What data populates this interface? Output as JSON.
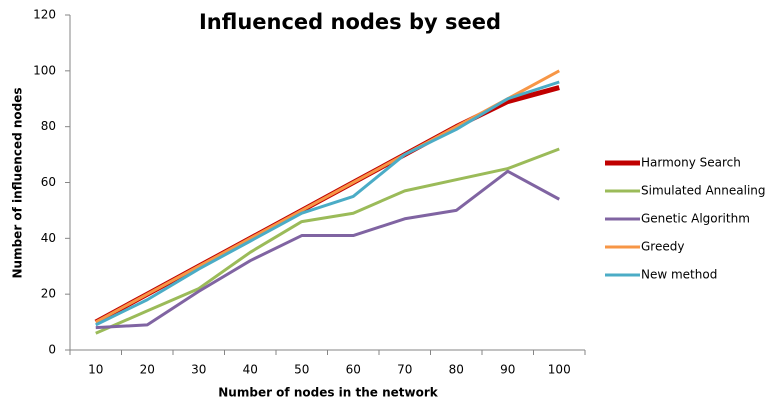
{
  "chart_data": {
    "type": "line",
    "title": "Influenced nodes by seed",
    "x_label": "Number of nodes in the network",
    "y_label": "Number of influenced nodes",
    "categories": [
      "10",
      "20",
      "30",
      "40",
      "50",
      "60",
      "70",
      "80",
      "90",
      "100"
    ],
    "series": [
      {
        "name": "Harmony Search",
        "color": "#c00000",
        "values": [
          10,
          20,
          30,
          40,
          50,
          60,
          70,
          80,
          89,
          94
        ]
      },
      {
        "name": "Simulated Annealing",
        "color": "#9bbb59",
        "values": [
          6,
          14,
          22,
          35,
          46,
          49,
          57,
          61,
          65,
          72
        ]
      },
      {
        "name": "Genetic Algorithm",
        "color": "#8064a2",
        "values": [
          8,
          9,
          21,
          32,
          41,
          41,
          47,
          50,
          64,
          54
        ]
      },
      {
        "name": "Greedy",
        "color": "#f79646",
        "values": [
          10,
          20,
          30,
          40,
          50,
          60,
          70,
          80,
          90,
          100
        ]
      },
      {
        "name": "New method",
        "color": "#4bacc6",
        "values": [
          9,
          18,
          29,
          39,
          49,
          55,
          70,
          79,
          90,
          96
        ]
      }
    ],
    "ylim": [
      0,
      120
    ],
    "yticks": [
      0,
      20,
      40,
      60,
      80,
      100,
      120
    ],
    "legend": "right",
    "grid": false
  }
}
